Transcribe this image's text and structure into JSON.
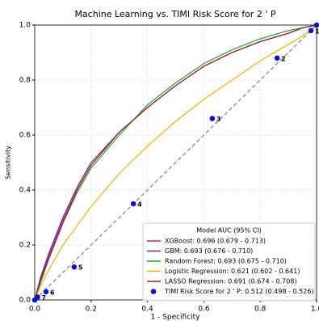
{
  "chart_data": {
    "type": "line",
    "title": "Machine Learning vs. TIMI Risk Score for 2 ' P",
    "xlabel": "1 - Specificity",
    "ylabel": "Sensitivity",
    "x": [
      0,
      0.02,
      0.05,
      0.1,
      0.15,
      0.2,
      0.3,
      0.4,
      0.5,
      0.6,
      0.7,
      0.8,
      0.9,
      0.95,
      1
    ],
    "series": [
      {
        "name": "XGBoost: 0.696 (0.679 - 0.713)",
        "color": "#b0209f",
        "values": [
          0,
          0.07,
          0.16,
          0.29,
          0.4,
          0.49,
          0.61,
          0.7,
          0.78,
          0.85,
          0.9,
          0.94,
          0.97,
          0.99,
          1
        ]
      },
      {
        "name": "GBM: 0.693 (0.676 - 0.710)",
        "color": "#6a2c8a",
        "values": [
          0,
          0.08,
          0.17,
          0.3,
          0.41,
          0.5,
          0.61,
          0.7,
          0.78,
          0.85,
          0.9,
          0.94,
          0.97,
          0.99,
          1
        ]
      },
      {
        "name": "Random Forest: 0.693 (0.675 - 0.710)",
        "color": "#2ca02c",
        "values": [
          0,
          0.06,
          0.15,
          0.28,
          0.39,
          0.48,
          0.6,
          0.71,
          0.79,
          0.86,
          0.91,
          0.95,
          0.98,
          0.99,
          1
        ]
      },
      {
        "name": "Logistic Regression: 0.621 (0.602 - 0.641)",
        "color": "#f2b400",
        "values": [
          0,
          0.05,
          0.11,
          0.2,
          0.27,
          0.34,
          0.46,
          0.56,
          0.65,
          0.73,
          0.8,
          0.87,
          0.93,
          0.96,
          1
        ]
      },
      {
        "name": "LASSO Regression: 0.691 (0.674 - 0.708)",
        "color": "#8b2a2a",
        "values": [
          0,
          0.07,
          0.15,
          0.28,
          0.4,
          0.49,
          0.61,
          0.7,
          0.78,
          0.85,
          0.9,
          0.94,
          0.97,
          0.99,
          1
        ]
      }
    ],
    "points": {
      "name": "TIMI Risk Score for 2 ' P: 0.512 (0.498 - 0.526)",
      "color": "#0a14d0",
      "x": [
        0,
        0.01,
        0.04,
        0.14,
        0.35,
        0.63,
        0.86,
        0.98,
        1
      ],
      "values": [
        0,
        0.01,
        0.03,
        0.12,
        0.35,
        0.66,
        0.88,
        0.98,
        1
      ],
      "labels": [
        null,
        "7",
        "6",
        "5",
        "4",
        "3",
        "2",
        "1",
        null
      ]
    },
    "legend_title": "Model AUC (95% CI)",
    "legend": "lower right",
    "xlim": [
      0,
      1
    ],
    "ylim": [
      0,
      1
    ],
    "xticks": [
      {
        "value": 0,
        "label": "0.0"
      },
      0.2,
      0.4,
      0.6,
      0.8,
      {
        "value": 1,
        "label": "1.0"
      }
    ],
    "yticks": [
      {
        "value": 0,
        "label": "0.0"
      },
      0.2,
      0.4,
      0.6,
      0.8,
      {
        "value": 1,
        "label": "1.0"
      }
    ],
    "grid": true
  }
}
